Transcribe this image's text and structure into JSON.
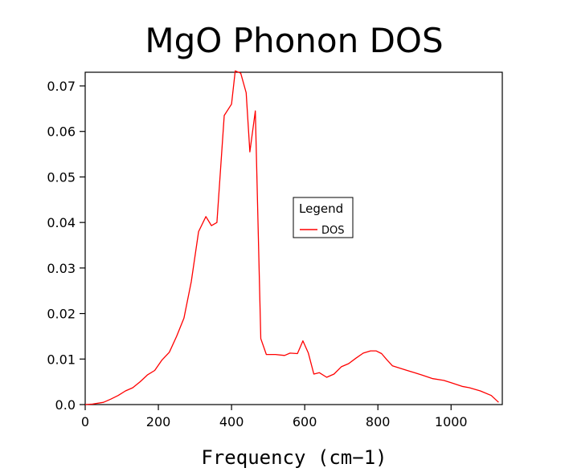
{
  "chart_data": {
    "type": "line",
    "title": "MgO Phonon DOS",
    "xlabel": "Frequency (cm−1)",
    "ylabel": "",
    "xlim": [
      0,
      1140
    ],
    "ylim": [
      0,
      0.073
    ],
    "xticks": [
      0,
      200,
      400,
      600,
      800,
      1000
    ],
    "xtick_labels": [
      "0",
      "200",
      "400",
      "600",
      "800",
      "1000"
    ],
    "yticks": [
      0,
      0.01,
      0.02,
      0.03,
      0.04,
      0.05,
      0.06,
      0.07
    ],
    "ytick_labels": [
      "0.0",
      "0.01",
      "0.02",
      "0.03",
      "0.04",
      "0.05",
      "0.06",
      "0.07"
    ],
    "grid": false,
    "legend": {
      "title": "Legend",
      "position": "center-right",
      "entries": [
        "DOS"
      ]
    },
    "series": [
      {
        "name": "DOS",
        "color": "#ff0000",
        "x": [
          0,
          20,
          50,
          70,
          90,
          110,
          130,
          150,
          170,
          190,
          210,
          230,
          250,
          270,
          290,
          310,
          330,
          345,
          360,
          380,
          400,
          410,
          425,
          440,
          450,
          465,
          480,
          495,
          520,
          545,
          560,
          580,
          595,
          610,
          625,
          640,
          660,
          680,
          700,
          720,
          740,
          760,
          780,
          795,
          810,
          825,
          840,
          860,
          880,
          900,
          920,
          950,
          980,
          1000,
          1030,
          1050,
          1080,
          1110,
          1130
        ],
        "y": [
          0,
          0.0001,
          0.0005,
          0.0012,
          0.002,
          0.003,
          0.0037,
          0.005,
          0.0065,
          0.0075,
          0.0098,
          0.0115,
          0.015,
          0.019,
          0.027,
          0.038,
          0.0413,
          0.0393,
          0.04,
          0.0635,
          0.066,
          0.0733,
          0.0728,
          0.0685,
          0.0555,
          0.0645,
          0.0145,
          0.011,
          0.011,
          0.0108,
          0.0113,
          0.0112,
          0.014,
          0.0113,
          0.0067,
          0.007,
          0.006,
          0.0067,
          0.0083,
          0.009,
          0.0102,
          0.0113,
          0.0118,
          0.0118,
          0.0112,
          0.0098,
          0.0085,
          0.008,
          0.0075,
          0.007,
          0.0065,
          0.0057,
          0.0053,
          0.0048,
          0.004,
          0.0037,
          0.003,
          0.002,
          0.0005
        ]
      }
    ]
  }
}
